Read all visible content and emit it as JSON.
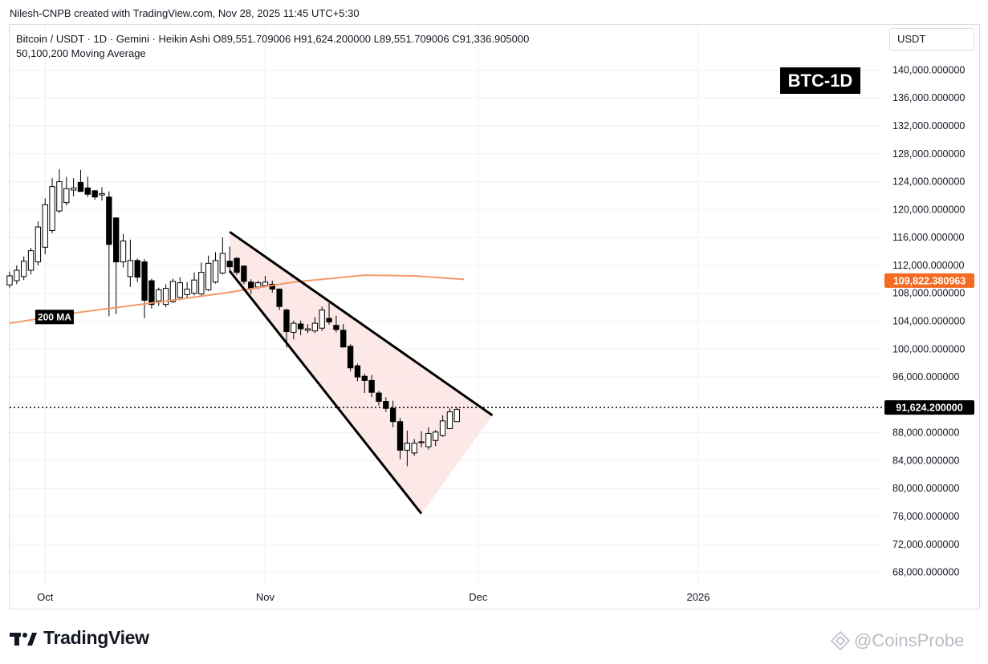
{
  "attribution": "Nilesh-CNPB created with TradingView.com, Nov 28, 2025 11:45 UTC+5:30",
  "legend": {
    "line1": "Bitcoin / USDT · 1D · Gemini · Heikin Ashi  O89,551.709006  H91,624.200000  L89,551.709006  C91,336.905000",
    "line2": "50,100,200 Moving Average"
  },
  "currency_button": "USDT",
  "brand": "TradingView",
  "watermark": "@CoinsProbe",
  "colors": {
    "up_candle_fill": "#ffffff",
    "candle_stroke": "#000000",
    "down_candle_fill": "#000000",
    "ma_line": "#f39a68",
    "ma_label_bg": "#f36a21",
    "wedge_fill": "#fde4e4",
    "wedge_stroke": "#000000"
  },
  "chart_data": {
    "type": "candlestick",
    "title": "BTC-1D",
    "y_axis": {
      "ticks": [
        140000,
        136000,
        132000,
        128000,
        124000,
        120000,
        116000,
        112000,
        108000,
        104000,
        100000,
        96000,
        92000,
        88000,
        84000,
        80000,
        76000,
        72000,
        68000
      ],
      "tick_labels": [
        "140,000.000000",
        "136,000.000000",
        "132,000.000000",
        "128,000.000000",
        "124,000.000000",
        "120,000.000000",
        "116,000.000000",
        "112,000.000000",
        "108,000.000000",
        "104,000.000000",
        "100,000.000000",
        "96,000.000000",
        "",
        "88,000.000000",
        "84,000.000000",
        "80,000.000000",
        "76,000.000000",
        "72,000.000000",
        "68,000.000000"
      ],
      "range": [
        66000,
        142000
      ]
    },
    "x_axis": {
      "labels": [
        "Oct",
        "Nov",
        "Dec",
        "2026"
      ],
      "label_dates": [
        "2025-10-01",
        "2025-11-01",
        "2025-12-01",
        "2026-01-01"
      ],
      "range": [
        "2025-09-26",
        "2026-01-27"
      ]
    },
    "dates": [
      "2025-09-26",
      "2025-09-27",
      "2025-09-28",
      "2025-09-29",
      "2025-09-30",
      "2025-10-01",
      "2025-10-02",
      "2025-10-03",
      "2025-10-04",
      "2025-10-05",
      "2025-10-06",
      "2025-10-07",
      "2025-10-08",
      "2025-10-09",
      "2025-10-10",
      "2025-10-11",
      "2025-10-12",
      "2025-10-13",
      "2025-10-14",
      "2025-10-15",
      "2025-10-16",
      "2025-10-17",
      "2025-10-18",
      "2025-10-19",
      "2025-10-20",
      "2025-10-21",
      "2025-10-22",
      "2025-10-23",
      "2025-10-24",
      "2025-10-25",
      "2025-10-26",
      "2025-10-27",
      "2025-10-28",
      "2025-10-29",
      "2025-10-30",
      "2025-10-31",
      "2025-11-01",
      "2025-11-02",
      "2025-11-03",
      "2025-11-04",
      "2025-11-05",
      "2025-11-06",
      "2025-11-07",
      "2025-11-08",
      "2025-11-09",
      "2025-11-10",
      "2025-11-11",
      "2025-11-12",
      "2025-11-13",
      "2025-11-14",
      "2025-11-15",
      "2025-11-16",
      "2025-11-17",
      "2025-11-18",
      "2025-11-19",
      "2025-11-20",
      "2025-11-21",
      "2025-11-22",
      "2025-11-23",
      "2025-11-24",
      "2025-11-25",
      "2025-11-26",
      "2025-11-27",
      "2025-11-28"
    ],
    "open": [
      109200,
      109800,
      110400,
      111300,
      112500,
      114600,
      117000,
      119800,
      121000,
      122800,
      123900,
      123100,
      122700,
      122100,
      121800,
      118800,
      112500,
      110400,
      112700,
      112500,
      109800,
      106900,
      106400,
      106800,
      107400,
      107800,
      108000,
      107900,
      108500,
      109600,
      110900,
      112600,
      113000,
      111900,
      109600,
      108900,
      109100,
      109300,
      108600,
      105600,
      102400,
      103600,
      102700,
      102600,
      103000,
      104400,
      103400,
      102700,
      100400,
      97600,
      96100,
      95500,
      93700,
      92500,
      91500,
      89600,
      85500,
      85100,
      86700,
      86000,
      86900,
      87600,
      88600,
      89600
    ],
    "close": [
      110500,
      111300,
      112600,
      114100,
      117500,
      120700,
      123300,
      124000,
      123000,
      123100,
      122600,
      122200,
      121800,
      122300,
      115000,
      112500,
      115500,
      112700,
      110300,
      107000,
      106400,
      108500,
      108700,
      109700,
      109500,
      108600,
      109900,
      111000,
      112300,
      112700,
      113700,
      111800,
      111000,
      109700,
      108600,
      109500,
      109600,
      108600,
      106100,
      102500,
      103700,
      102900,
      102900,
      103700,
      105600,
      103900,
      102800,
      100300,
      97300,
      96000,
      95500,
      93800,
      92500,
      91500,
      89600,
      85500,
      86500,
      86500,
      86600,
      87900,
      88100,
      89700,
      91000,
      91337
    ],
    "high": [
      111100,
      112000,
      113300,
      114500,
      118300,
      121600,
      124500,
      125800,
      124700,
      124500,
      125700,
      124700,
      122800,
      123200,
      122600,
      118900,
      116500,
      115700,
      113000,
      112900,
      110100,
      108800,
      109300,
      110100,
      110300,
      109600,
      111000,
      112400,
      113400,
      113900,
      116000,
      114700,
      113200,
      112000,
      110000,
      109800,
      110500,
      109800,
      108700,
      105800,
      104100,
      104100,
      103600,
      104600,
      106100,
      106600,
      104800,
      103600,
      100700,
      97900,
      96500,
      96300,
      94000,
      93100,
      92600,
      90100,
      88300,
      87100,
      88200,
      88800,
      88400,
      90500,
      91500,
      91624
    ],
    "low": [
      108800,
      109300,
      109900,
      110700,
      112000,
      113600,
      116600,
      119500,
      120600,
      121900,
      122800,
      121800,
      121400,
      121300,
      104700,
      105000,
      111700,
      108900,
      109600,
      104400,
      105800,
      106200,
      106000,
      106600,
      107000,
      107300,
      107700,
      107600,
      108300,
      109400,
      110700,
      110900,
      110600,
      109300,
      107900,
      108600,
      108900,
      108100,
      105600,
      100200,
      101400,
      102000,
      102300,
      102300,
      102600,
      103500,
      102400,
      100200,
      96800,
      95400,
      93700,
      93100,
      91900,
      91000,
      88800,
      84200,
      83200,
      84700,
      85900,
      85600,
      86100,
      87400,
      88500,
      89552
    ],
    "ma_200": {
      "name": "200 MA",
      "x_dates": [
        "2025-09-26",
        "2025-10-06",
        "2025-10-16",
        "2025-10-26",
        "2025-11-05",
        "2025-11-15",
        "2025-11-22",
        "2025-11-29"
      ],
      "values": [
        103700,
        105300,
        106600,
        108000,
        109600,
        110600,
        110500,
        110000
      ]
    },
    "wedge": {
      "upper_line": [
        [
          "2025-10-27",
          116800
        ],
        [
          "2025-12-03",
          90500
        ]
      ],
      "lower_line": [
        [
          "2025-10-27",
          111200
        ],
        [
          "2025-11-23",
          76400
        ]
      ],
      "apex": [
        "2025-12-03",
        90500
      ]
    },
    "price_lines": [
      {
        "label": "109,822.380963",
        "value": 109822.380963,
        "color": "#f36a21"
      },
      {
        "label": "91,624.200000",
        "value": 91624.2,
        "color": "#000000"
      }
    ],
    "grid": true,
    "legend": "top-left"
  }
}
